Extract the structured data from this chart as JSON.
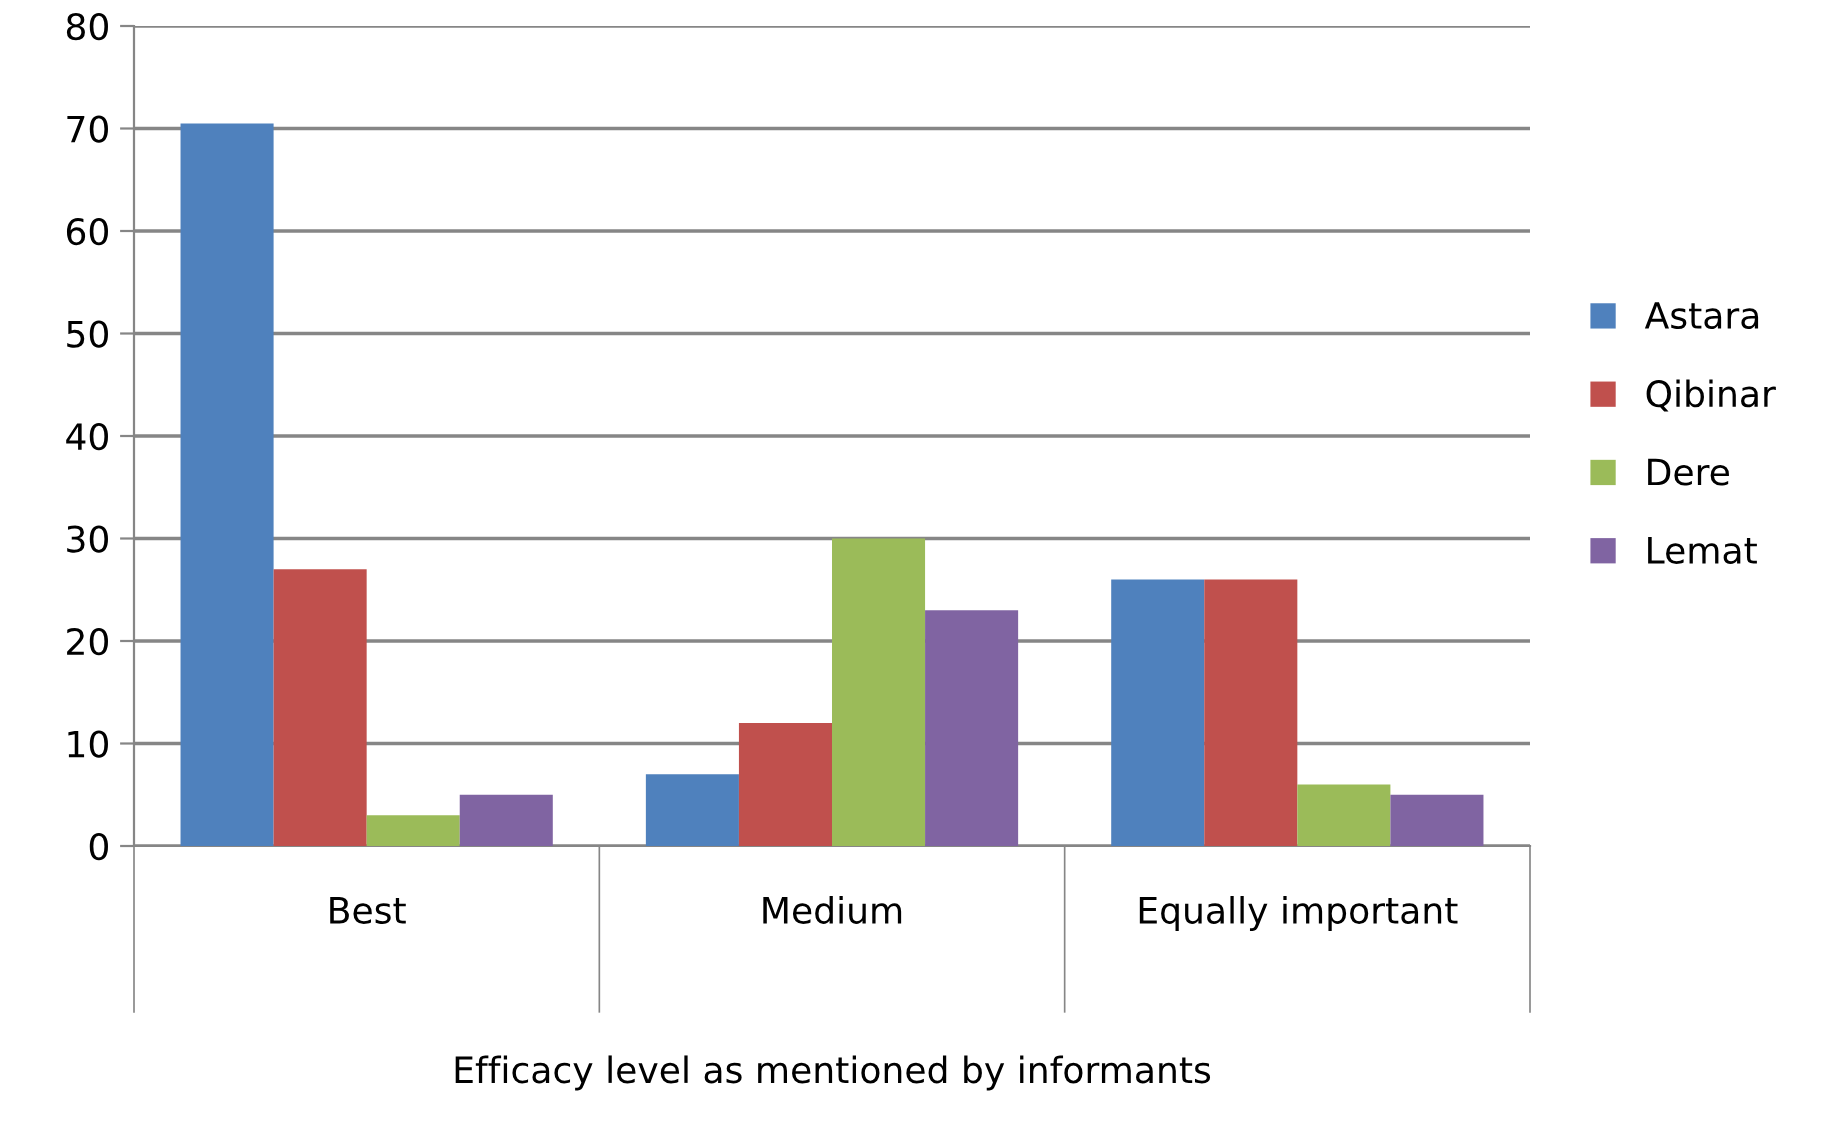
{
  "chart_data": {
    "type": "bar",
    "xlabel": "Efficacy level as mentioned by informants",
    "categories": [
      "Best",
      "Medium",
      "Equally important"
    ],
    "series": [
      {
        "name": "Astara",
        "color": "#4f81bd",
        "values": [
          70.5,
          7,
          26
        ]
      },
      {
        "name": "Qibinar",
        "color": "#c0504d",
        "values": [
          27,
          12,
          26
        ]
      },
      {
        "name": "Dere",
        "color": "#9bbb59",
        "values": [
          3,
          30,
          6
        ]
      },
      {
        "name": "Lemat",
        "color": "#8064a2",
        "values": [
          5,
          23,
          5
        ]
      }
    ],
    "ylim": [
      0,
      80
    ],
    "yticks": [
      0,
      10,
      20,
      30,
      40,
      50,
      60,
      70,
      80
    ],
    "grid": "y",
    "legend": "right"
  }
}
